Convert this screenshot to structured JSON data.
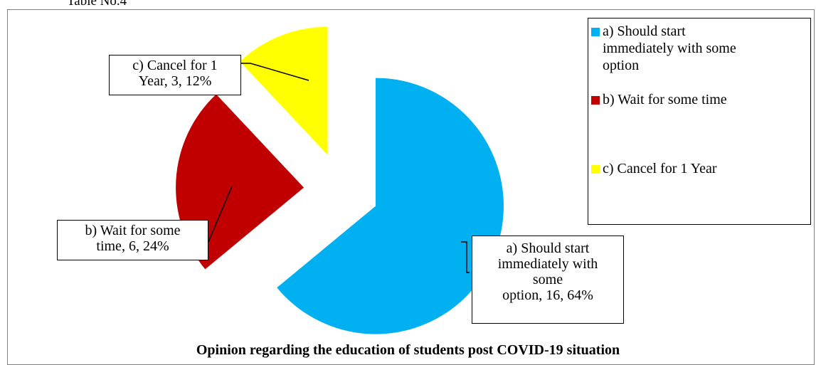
{
  "caption": "Table No.4",
  "chart_data": {
    "type": "pie",
    "title": "Opinion regarding the education of students post COVID-19 situation",
    "slices": [
      {
        "name": "a) Should start immediately with some option",
        "count": 16,
        "percent": 64,
        "color": "#00b0f0"
      },
      {
        "name": "b) Wait for some time",
        "count": 6,
        "percent": 24,
        "color": "#c00000"
      },
      {
        "name": "c) Cancel for 1 Year",
        "count": 3,
        "percent": 12,
        "color": "#ffff00"
      }
    ],
    "legend_placement": "right"
  },
  "data_labels": {
    "a": [
      "a) Should start",
      "immediately with",
      "some",
      "option, 16, 64%"
    ],
    "b": [
      "b) Wait for some",
      "time, 6, 24%"
    ],
    "c": [
      "c) Cancel for 1",
      "Year, 3, 12%"
    ]
  },
  "legend": {
    "a": [
      "a) Should start",
      "immediately with some",
      "option"
    ],
    "b": [
      "b) Wait for some time"
    ],
    "c": [
      "c) Cancel for 1  Year"
    ]
  }
}
